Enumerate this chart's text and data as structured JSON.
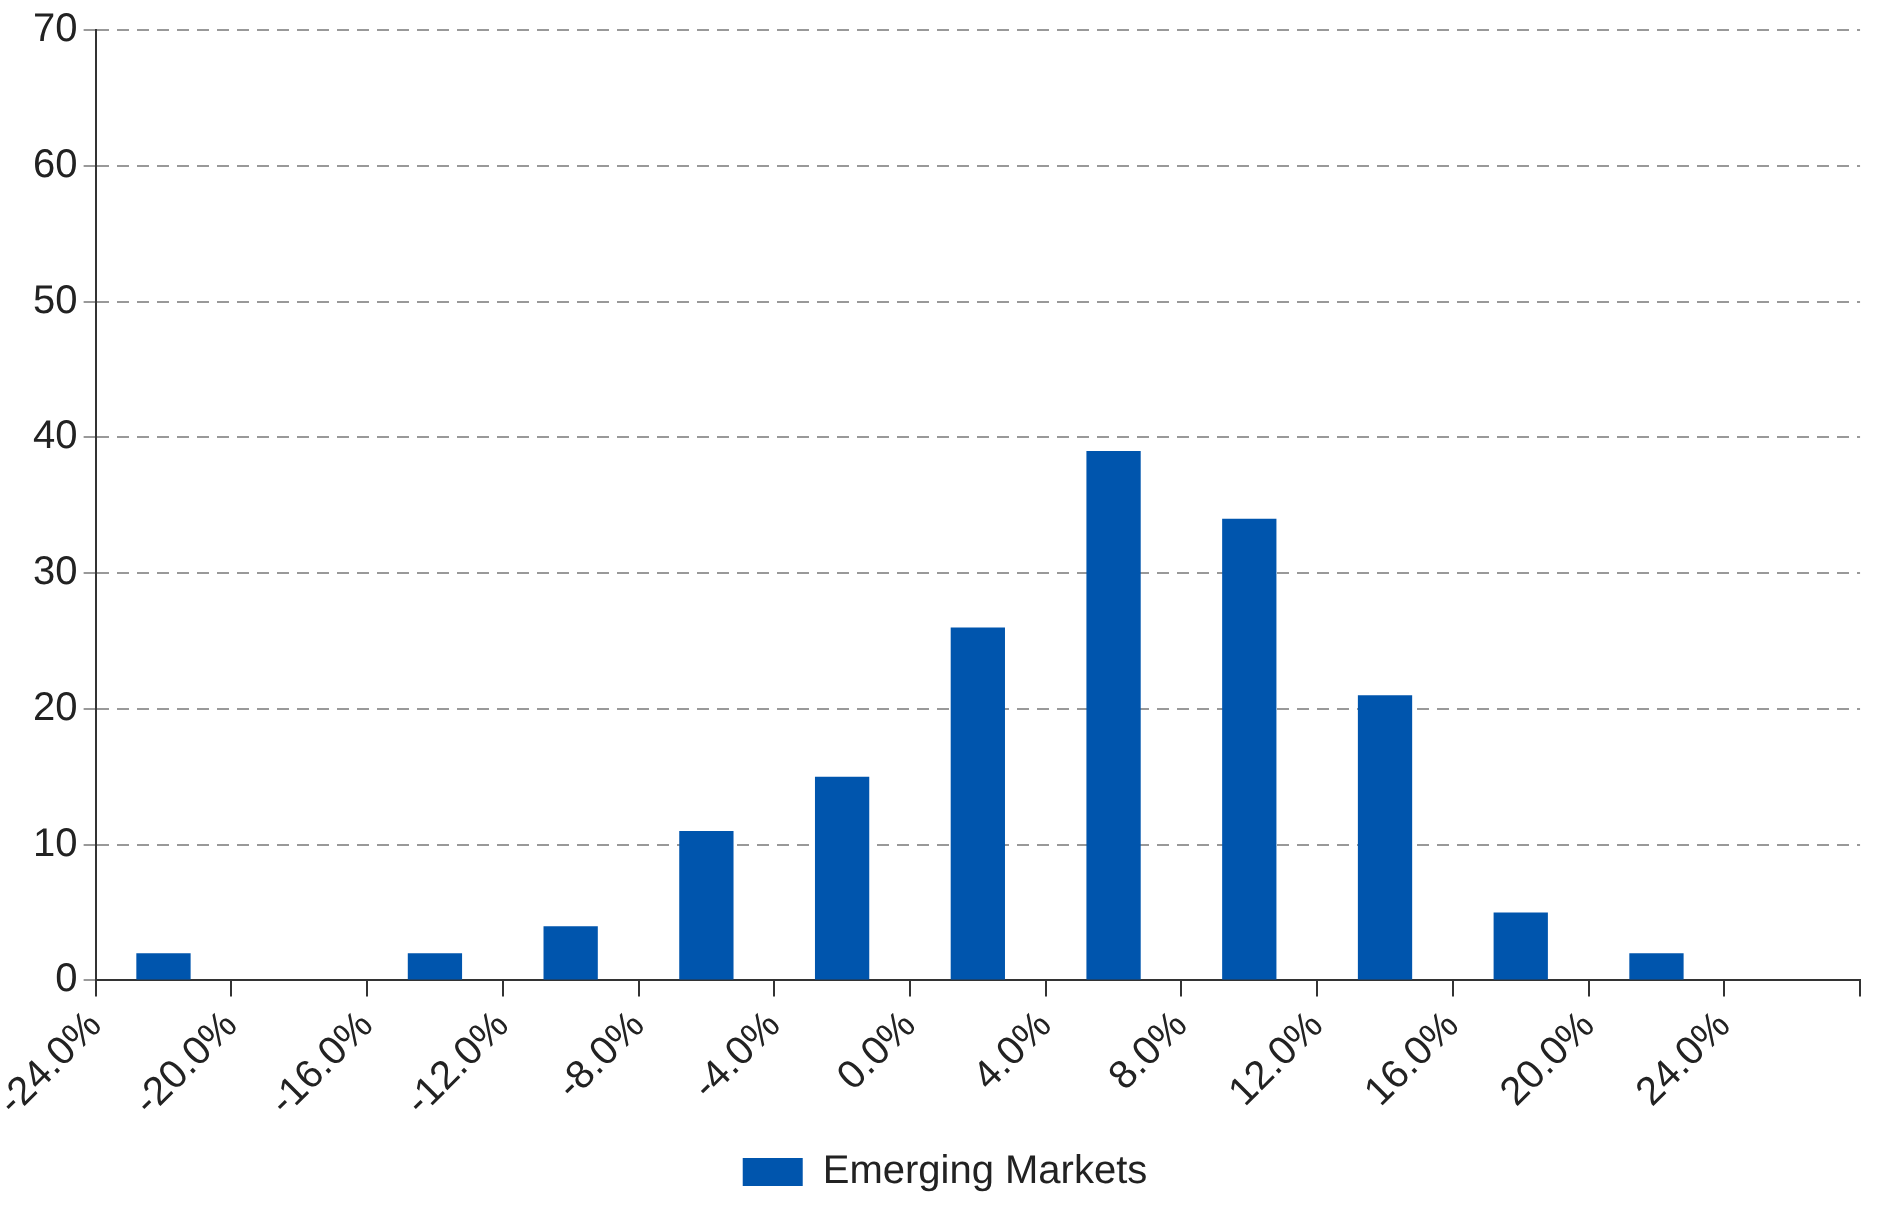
{
  "chart_data": {
    "type": "histogram",
    "bins": [
      -24,
      -20,
      -16,
      -12,
      -8,
      -4,
      0,
      4,
      8,
      12,
      16,
      20,
      24,
      28
    ],
    "series": [
      {
        "name": "Emerging Markets",
        "color": "#0055ad",
        "values": [
          2,
          0,
          2,
          4,
          11,
          15,
          26,
          39,
          34,
          21,
          5,
          2,
          0
        ]
      }
    ],
    "xlim": [
      -24,
      28
    ],
    "xticks": [
      {
        "value": -24,
        "label": "-24.0%"
      },
      {
        "value": -20,
        "label": "-20.0%"
      },
      {
        "value": -16,
        "label": "-16.0%"
      },
      {
        "value": -12,
        "label": "-12.0%"
      },
      {
        "value": -8,
        "label": "-8.0%"
      },
      {
        "value": -4,
        "label": "-4.0%"
      },
      {
        "value": 0,
        "label": "0.0%"
      },
      {
        "value": 4,
        "label": "4.0%"
      },
      {
        "value": 8,
        "label": "8.0%"
      },
      {
        "value": 12,
        "label": "12.0%"
      },
      {
        "value": 16,
        "label": "16.0%"
      },
      {
        "value": 20,
        "label": "20.0%"
      },
      {
        "value": 24,
        "label": "24.0%"
      },
      {
        "value": 28,
        "label": null
      }
    ],
    "ylim": [
      0,
      70
    ],
    "yticks": [
      0,
      10,
      20,
      30,
      40,
      50,
      60,
      70
    ],
    "grid": "y",
    "legend": "bottom"
  }
}
